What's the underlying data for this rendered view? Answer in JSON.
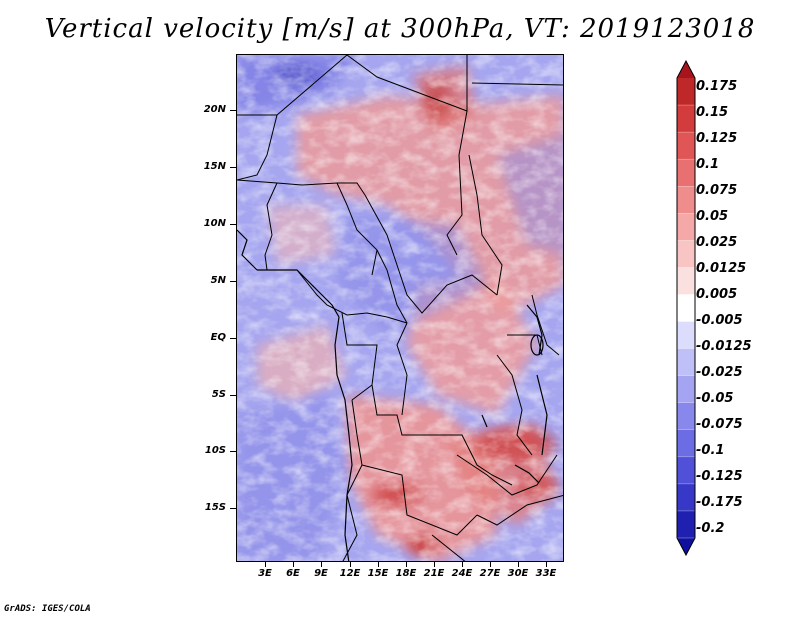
{
  "title": "Vertical velocity [m/s] at 300hPa, VT: 2019123018",
  "credit": "GrADS: IGES/COLA",
  "lat_labels": [
    "20N",
    "15N",
    "10N",
    "5N",
    "EQ",
    "5S",
    "10S",
    "15S"
  ],
  "lon_labels": [
    "3E",
    "6E",
    "9E",
    "12E",
    "15E",
    "18E",
    "21E",
    "24E",
    "27E",
    "30E",
    "33E"
  ],
  "colorbar": {
    "labels": [
      "0.175",
      "0.15",
      "0.125",
      "0.1",
      "0.075",
      "0.05",
      "0.025",
      "0.0125",
      "0.005",
      "-0.005",
      "-0.0125",
      "-0.025",
      "-0.05",
      "-0.075",
      "-0.1",
      "-0.125",
      "-0.175",
      "-0.2"
    ],
    "colors": [
      "#a8141e",
      "#be2828",
      "#d23c3c",
      "#e05555",
      "#e87070",
      "#ef8c8c",
      "#f5a8a8",
      "#f8c4c4",
      "#fbe0e0",
      "#ffffff",
      "#dcdcfc",
      "#c0c0f8",
      "#a4a4f2",
      "#8888ec",
      "#6c6ce4",
      "#5050d8",
      "#3838c8",
      "#2020b0",
      "#1010a0"
    ]
  },
  "palette": {
    "land_red": "#e89090",
    "land_blue": "#9a9aee",
    "border": "#000000"
  }
}
